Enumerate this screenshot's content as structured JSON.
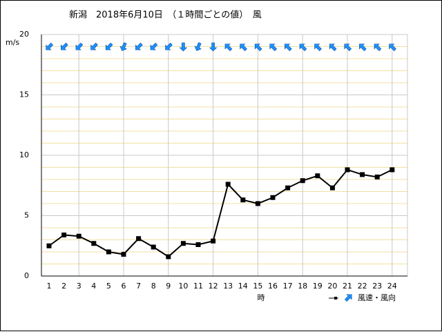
{
  "chart_data": {
    "type": "line",
    "title": "新潟　2018年6月10日　（１時間ごとの値）　風",
    "y_label": "m/s",
    "x_label": "時",
    "categories": [
      "1",
      "2",
      "3",
      "4",
      "5",
      "6",
      "7",
      "8",
      "9",
      "10",
      "11",
      "12",
      "13",
      "14",
      "15",
      "16",
      "17",
      "18",
      "19",
      "20",
      "21",
      "22",
      "23",
      "24"
    ],
    "series": [
      {
        "name": "風速・風向",
        "color": "#000000",
        "arrow_color": "#1e90ff",
        "values": [
          2.5,
          3.4,
          3.3,
          2.7,
          2.0,
          1.8,
          3.1,
          2.4,
          1.6,
          2.7,
          2.6,
          2.9,
          7.6,
          6.3,
          6.0,
          6.5,
          7.3,
          7.9,
          8.3,
          7.3,
          8.8,
          8.4,
          8.2,
          8.8
        ],
        "wind_from_deg": [
          45,
          45,
          45,
          45,
          45,
          22.5,
          45,
          45,
          45,
          0,
          22.5,
          0,
          135,
          135,
          135,
          135,
          135,
          135,
          135,
          135,
          135,
          135,
          135,
          135
        ]
      }
    ],
    "ylim": [
      0,
      20
    ],
    "yticks": [
      0,
      5,
      10,
      15,
      20
    ],
    "minor_ystep": 1,
    "xgrid_every": 3,
    "grid": true
  }
}
